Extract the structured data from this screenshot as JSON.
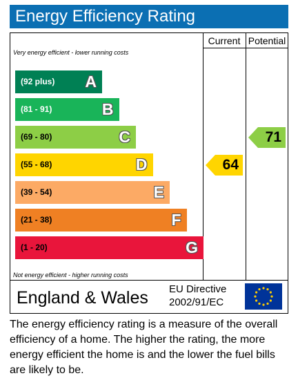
{
  "title": "Energy Efficiency Rating",
  "columns": {
    "current": "Current",
    "potential": "Potential"
  },
  "top_note": "Very energy efficient - lower running costs",
  "bottom_note": "Not energy efficient - higher running costs",
  "footer": {
    "region": "England & Wales",
    "directive_line1": "EU Directive",
    "directive_line2": "2002/91/EC",
    "flag_icon": "eu-flag-icon"
  },
  "description": "The energy efficiency rating is a measure of the overall efficiency of a home. The higher the rating, the more energy efficient the home is and the lower the fuel bills are likely to be.",
  "chart_data": {
    "type": "bar",
    "title": "Energy Efficiency Rating",
    "bands": [
      {
        "letter": "A",
        "range": "(92 plus)",
        "color": "#008054",
        "range_color": "#ffffff"
      },
      {
        "letter": "B",
        "range": "(81 - 91)",
        "color": "#19b459",
        "range_color": "#ffffff"
      },
      {
        "letter": "C",
        "range": "(69 - 80)",
        "color": "#8dce46",
        "range_color": "#000000"
      },
      {
        "letter": "D",
        "range": "(55 - 68)",
        "color": "#ffd500",
        "range_color": "#000000"
      },
      {
        "letter": "E",
        "range": "(39 - 54)",
        "color": "#fcaa65",
        "range_color": "#000000"
      },
      {
        "letter": "F",
        "range": "(21 - 38)",
        "color": "#ef8023",
        "range_color": "#000000"
      },
      {
        "letter": "G",
        "range": "(1 - 20)",
        "color": "#e9153b",
        "range_color": "#000000"
      }
    ],
    "current": {
      "value": 64,
      "band": "D",
      "color": "#ffd500"
    },
    "potential": {
      "value": 71,
      "band": "C",
      "color": "#8dce46"
    }
  }
}
